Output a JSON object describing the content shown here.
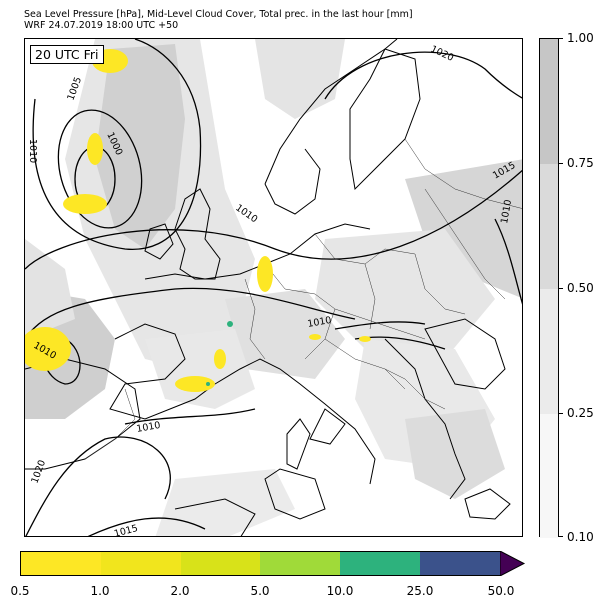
{
  "title_line1": "Sea Level Pressure [hPa], Mid-Level Cloud Cover, Total prec. in the last hour [mm]",
  "title_line2": "WRF 24.07.2019 18:00 UTC +50",
  "time_label": "20 UTC Fri",
  "isobar_labels": [
    "1005",
    "1000",
    "1010",
    "1020",
    "1015",
    "1010",
    "1010",
    "1015",
    "1010",
    "1010",
    "1010",
    "1020",
    "1015"
  ],
  "cloud_cover_colorbar": {
    "ticks": [
      "1.00",
      "0.75",
      "0.50",
      "0.25",
      "0.10"
    ],
    "colors": [
      "#c6c6c6",
      "#dadada",
      "#ebebeb",
      "#f7f7f7"
    ]
  },
  "precip_colorbar": {
    "ticks": [
      "0.5",
      "1.0",
      "2.0",
      "5.0",
      "10.0",
      "25.0",
      "50.0"
    ],
    "colors": [
      "#fde725",
      "#f1e51d",
      "#d8e219",
      "#a0da39",
      "#2db27d",
      "#3b528b",
      "#440154"
    ],
    "extend": "max"
  }
}
